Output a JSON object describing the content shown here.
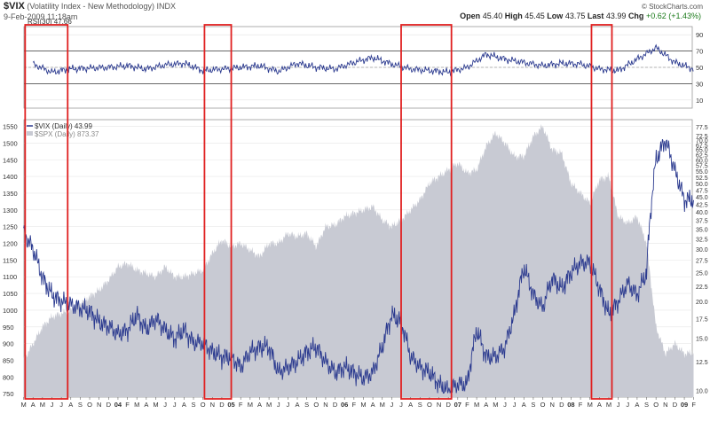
{
  "header": {
    "symbol": "$VIX",
    "name": "(Volatility Index - New Methodology)",
    "exchange": "INDX",
    "datetime": "9-Feb-2009 11:18am",
    "watermark": "© StockCharts.com",
    "quote": {
      "open_label": "Open",
      "open": "45.40",
      "high_label": "High",
      "high": "45.45",
      "low_label": "Low",
      "low": "43.75",
      "last_label": "Last",
      "last": "43.99",
      "chg_label": "Chg",
      "chg": "+0.62 (+1.43%)"
    }
  },
  "colors": {
    "vix_line": "#2b3a8f",
    "spx_area": "#c8cad3",
    "highlight": "#e02020",
    "rsi_line": "#2b3a8f"
  },
  "chart_data": [
    {
      "type": "line",
      "legend": "RSI(30) 47.66",
      "y_ticks": [
        10,
        30,
        50,
        70,
        90
      ],
      "ylim": [
        0,
        100
      ],
      "ref_lines": [
        30,
        70
      ],
      "x": [
        "2003-04",
        "2003-06",
        "2003-08",
        "2003-10",
        "2003-12",
        "2004-02",
        "2004-04",
        "2004-06",
        "2004-08",
        "2004-10",
        "2004-12",
        "2005-02",
        "2005-04",
        "2005-06",
        "2005-08",
        "2005-10",
        "2005-12",
        "2006-02",
        "2006-04",
        "2006-06",
        "2006-08",
        "2006-10",
        "2006-12",
        "2007-02",
        "2007-04",
        "2007-06",
        "2007-08",
        "2007-10",
        "2007-12",
        "2008-02",
        "2008-04",
        "2008-06",
        "2008-08",
        "2008-10",
        "2008-12",
        "2009-02"
      ],
      "values": [
        54,
        44,
        48,
        49,
        50,
        52,
        48,
        53,
        55,
        46,
        48,
        50,
        52,
        45,
        55,
        50,
        48,
        56,
        62,
        54,
        48,
        46,
        44,
        50,
        66,
        60,
        56,
        52,
        55,
        54,
        48,
        46,
        60,
        74,
        56,
        48
      ]
    },
    {
      "type": "line",
      "series": [
        {
          "name": "$VIX (Daily) 43.99",
          "axis": "right",
          "x": [
            "2003-03",
            "2003-04",
            "2003-05",
            "2003-06",
            "2003-07",
            "2003-08",
            "2003-09",
            "2003-10",
            "2003-11",
            "2003-12",
            "2004-01",
            "2004-02",
            "2004-03",
            "2004-04",
            "2004-05",
            "2004-06",
            "2004-07",
            "2004-08",
            "2004-09",
            "2004-10",
            "2004-11",
            "2004-12",
            "2005-01",
            "2005-02",
            "2005-03",
            "2005-04",
            "2005-05",
            "2005-06",
            "2005-07",
            "2005-08",
            "2005-09",
            "2005-10",
            "2005-11",
            "2005-12",
            "2006-01",
            "2006-02",
            "2006-03",
            "2006-04",
            "2006-05",
            "2006-06",
            "2006-07",
            "2006-08",
            "2006-09",
            "2006-10",
            "2006-11",
            "2006-12",
            "2007-01",
            "2007-02",
            "2007-03",
            "2007-04",
            "2007-05",
            "2007-06",
            "2007-07",
            "2007-08",
            "2007-09",
            "2007-10",
            "2007-11",
            "2007-12",
            "2008-01",
            "2008-02",
            "2008-03",
            "2008-04",
            "2008-05",
            "2008-06",
            "2008-07",
            "2008-08",
            "2008-09",
            "2008-10",
            "2008-11",
            "2008-12",
            "2009-01",
            "2009-02"
          ],
          "values": [
            34,
            30,
            24,
            21,
            20,
            19.5,
            19,
            18.5,
            17,
            16.5,
            15.5,
            16,
            18,
            16,
            17.5,
            16,
            15,
            16,
            14.5,
            14.5,
            13.5,
            13,
            13,
            12,
            13.5,
            14,
            14,
            11.5,
            12,
            12.5,
            13.5,
            14,
            12.5,
            11.5,
            12,
            11.5,
            11,
            11.5,
            14,
            18,
            17,
            13,
            12,
            11.5,
            10.5,
            10,
            10.5,
            10.5,
            16,
            13,
            13,
            14,
            18,
            26,
            21,
            19,
            24,
            22,
            25,
            27,
            27,
            22,
            18,
            20,
            23,
            21,
            25,
            60,
            70,
            55,
            44,
            44
          ]
        },
        {
          "name": "$SPX (Daily) 873.37",
          "axis": "left",
          "x": [
            "2003-03",
            "2003-04",
            "2003-05",
            "2003-06",
            "2003-07",
            "2003-08",
            "2003-09",
            "2003-10",
            "2003-11",
            "2003-12",
            "2004-01",
            "2004-02",
            "2004-03",
            "2004-04",
            "2004-05",
            "2004-06",
            "2004-07",
            "2004-08",
            "2004-09",
            "2004-10",
            "2004-11",
            "2004-12",
            "2005-01",
            "2005-02",
            "2005-03",
            "2005-04",
            "2005-05",
            "2005-06",
            "2005-07",
            "2005-08",
            "2005-09",
            "2005-10",
            "2005-11",
            "2005-12",
            "2006-01",
            "2006-02",
            "2006-03",
            "2006-04",
            "2006-05",
            "2006-06",
            "2006-07",
            "2006-08",
            "2006-09",
            "2006-10",
            "2006-11",
            "2006-12",
            "2007-01",
            "2007-02",
            "2007-03",
            "2007-04",
            "2007-05",
            "2007-06",
            "2007-07",
            "2007-08",
            "2007-09",
            "2007-10",
            "2007-11",
            "2007-12",
            "2008-01",
            "2008-02",
            "2008-03",
            "2008-04",
            "2008-05",
            "2008-06",
            "2008-07",
            "2008-08",
            "2008-09",
            "2008-10",
            "2008-11",
            "2008-12",
            "2009-01",
            "2009-02"
          ],
          "values": [
            850,
            900,
            950,
            980,
            990,
            1000,
            1020,
            1040,
            1060,
            1090,
            1130,
            1140,
            1120,
            1110,
            1100,
            1130,
            1100,
            1100,
            1110,
            1120,
            1170,
            1210,
            1190,
            1200,
            1180,
            1160,
            1200,
            1200,
            1230,
            1220,
            1230,
            1190,
            1250,
            1255,
            1280,
            1290,
            1300,
            1310,
            1270,
            1250,
            1270,
            1300,
            1330,
            1380,
            1400,
            1420,
            1440,
            1410,
            1420,
            1490,
            1530,
            1500,
            1460,
            1460,
            1520,
            1550,
            1480,
            1470,
            1380,
            1350,
            1320,
            1390,
            1400,
            1280,
            1260,
            1280,
            1200,
            950,
            870,
            900,
            870,
            873
          ]
        }
      ],
      "left_ticks": [
        750,
        800,
        850,
        900,
        950,
        1000,
        1050,
        1100,
        1150,
        1200,
        1250,
        1300,
        1350,
        1400,
        1450,
        1500,
        1550
      ],
      "left_lim": [
        740,
        1570
      ],
      "right_ticks": [
        "77.5",
        "72.5",
        "70.0",
        "67.5",
        "65.0",
        "62.5",
        "60.0",
        "57.5",
        "55.0",
        "52.5",
        "50.0",
        "47.5",
        "45.0",
        "42.5",
        "40.0",
        "37.5",
        "35.0",
        "32.5",
        "30.0",
        "27.5",
        "25.0",
        "22.5",
        "20.0",
        "17.5",
        "15.0",
        "12.5",
        "10.0"
      ],
      "right_scale": "log",
      "right_lim": [
        9.5,
        82
      ],
      "x_tick_labels": [
        "M",
        "A",
        "M",
        "J",
        "J",
        "A",
        "S",
        "O",
        "N",
        "D",
        "04",
        "F",
        "M",
        "A",
        "M",
        "J",
        "J",
        "A",
        "S",
        "O",
        "N",
        "D",
        "05",
        "F",
        "M",
        "A",
        "M",
        "J",
        "J",
        "A",
        "S",
        "O",
        "N",
        "D",
        "06",
        "F",
        "M",
        "A",
        "M",
        "J",
        "J",
        "A",
        "S",
        "O",
        "N",
        "D",
        "07",
        "F",
        "M",
        "A",
        "M",
        "J",
        "J",
        "A",
        "S",
        "O",
        "N",
        "D",
        "08",
        "F",
        "M",
        "A",
        "M",
        "J",
        "J",
        "A",
        "S",
        "O",
        "N",
        "D",
        "09",
        "F"
      ],
      "x_tick_start": "2003-03",
      "bold_ticks": [
        "04",
        "05",
        "06",
        "07",
        "08",
        "09"
      ],
      "highlight_ranges": [
        [
          "2003-03-20",
          "2003-08-05"
        ],
        [
          "2004-10-20",
          "2005-01-15"
        ],
        [
          "2006-07-15",
          "2006-12-25"
        ],
        [
          "2008-03-20",
          "2008-05-25"
        ]
      ]
    }
  ]
}
